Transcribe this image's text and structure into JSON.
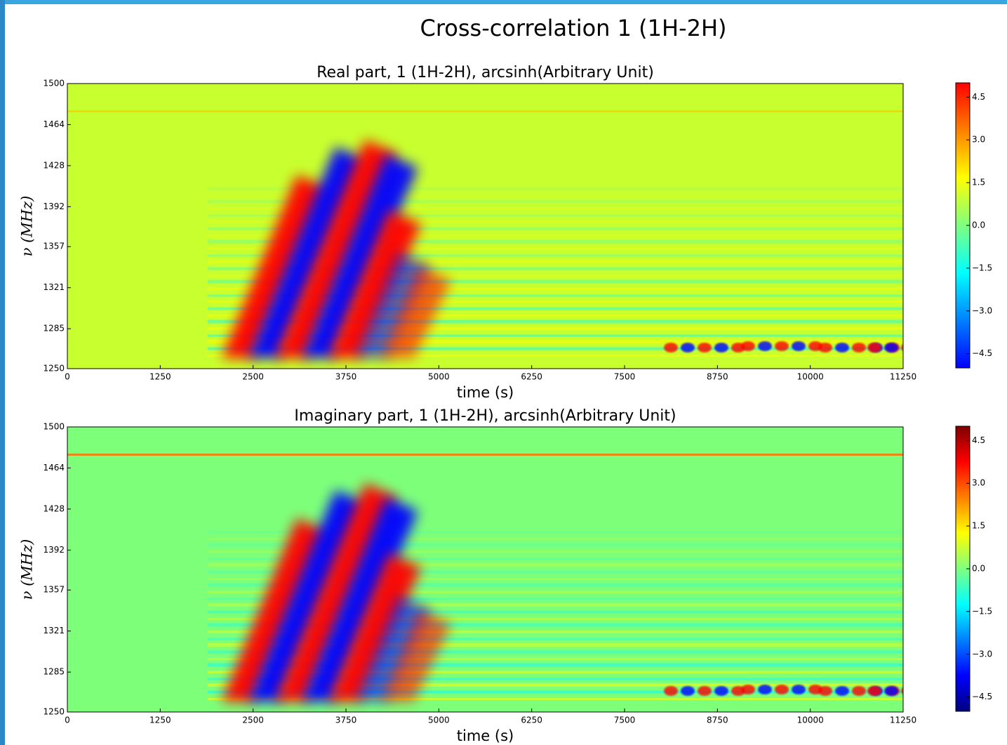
{
  "title": "Cross-correlation 1 (1H-2H)",
  "chart_data": [
    {
      "type": "heatmap",
      "title": "Real part, 1 (1H-2H), arcsinh(Arbitrary Unit)",
      "xlabel": "time (s)",
      "ylabel": "ν (MHz)",
      "xlim": [
        0,
        11250
      ],
      "xticks": [
        0,
        1250,
        2500,
        3750,
        5000,
        6250,
        7500,
        8750,
        10000,
        11250
      ],
      "ylim": [
        1250,
        1500
      ],
      "yticks": [
        1250,
        1285,
        1321,
        1357,
        1392,
        1428,
        1464,
        1500
      ],
      "background": "#c8ff2e",
      "colormap": [
        "#0000ff",
        "#0080ff",
        "#00ffff",
        "#80ff80",
        "#ffff00",
        "#ff8000",
        "#ff0000"
      ],
      "clim": [
        -5,
        5
      ],
      "cticks": [
        {
          "value": -4.5,
          "label": "−4.5"
        },
        {
          "value": -3,
          "label": "−3.0"
        },
        {
          "value": -1.5,
          "label": "−1.5"
        },
        {
          "value": 0,
          "label": "0.0"
        },
        1.5,
        {
          "value": 3,
          "label": "3.0"
        },
        4.5
      ]
    },
    {
      "type": "heatmap",
      "title": "Imaginary part, 1 (1H-2H), arcsinh(Arbitrary Unit)",
      "xlabel": "time (s)",
      "ylabel": "ν (MHz)",
      "xlim": [
        0,
        11250
      ],
      "xticks": [
        0,
        1250,
        2500,
        3750,
        5000,
        6250,
        7500,
        8750,
        10000,
        11250
      ],
      "ylim": [
        1250,
        1500
      ],
      "yticks": [
        1250,
        1285,
        1321,
        1357,
        1392,
        1428,
        1464,
        1500
      ],
      "background": "#7dff7a",
      "colormap": [
        "#00007f",
        "#0000ff",
        "#0080ff",
        "#00ffff",
        "#80ff80",
        "#ffff00",
        "#ff8000",
        "#ff0000",
        "#7f0000"
      ],
      "clim": [
        -5,
        5
      ],
      "cticks": [
        {
          "value": -4.5,
          "label": "−4.5"
        },
        {
          "value": -3,
          "label": "−3.0"
        },
        {
          "value": -1.5,
          "label": "−1.5"
        },
        {
          "value": 0,
          "label": "0.0"
        },
        1.5,
        {
          "value": 3,
          "label": "3.0"
        },
        4.5
      ]
    }
  ]
}
